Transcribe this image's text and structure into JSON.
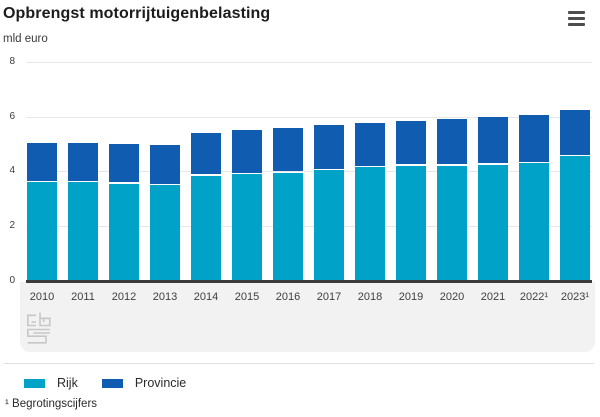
{
  "header": {
    "title": "Opbrengst motorrijtuigenbelasting",
    "unit_label": "mld euro"
  },
  "chart_data": {
    "type": "bar",
    "stacked": true,
    "title": "Opbrengst motorrijtuigenbelasting",
    "ylabel": "mld euro",
    "xlabel": "",
    "ylim": [
      0,
      8
    ],
    "yticks": [
      0,
      2,
      4,
      6,
      8
    ],
    "grid": true,
    "legend_position": "bottom",
    "categories": [
      "2010",
      "2011",
      "2012",
      "2013",
      "2014",
      "2015",
      "2016",
      "2017",
      "2018",
      "2019",
      "2020",
      "2021",
      "2022¹",
      "2023¹"
    ],
    "series": [
      {
        "name": "Rijk",
        "color": "#00a2c8",
        "values": [
          3.6,
          3.6,
          3.55,
          3.5,
          3.85,
          3.9,
          3.95,
          4.05,
          4.15,
          4.2,
          4.2,
          4.25,
          4.3,
          4.55
        ]
      },
      {
        "name": "Provincie",
        "color": "#0f5cb1",
        "values": [
          1.45,
          1.45,
          1.45,
          1.45,
          1.55,
          1.6,
          1.65,
          1.65,
          1.6,
          1.65,
          1.7,
          1.75,
          1.75,
          1.7
        ]
      }
    ],
    "totals": [
      5.05,
      5.05,
      5.0,
      4.95,
      5.4,
      5.5,
      5.6,
      5.7,
      5.75,
      5.85,
      5.9,
      6.0,
      6.05,
      6.25
    ]
  },
  "footnote": "¹ Begrotingscijfers",
  "colors": {
    "rijk": "#00a2c8",
    "provincie": "#0f5cb1",
    "axis": "#3c3c3c",
    "gridline": "#e7e7e7",
    "band": "#f2f2f2"
  }
}
